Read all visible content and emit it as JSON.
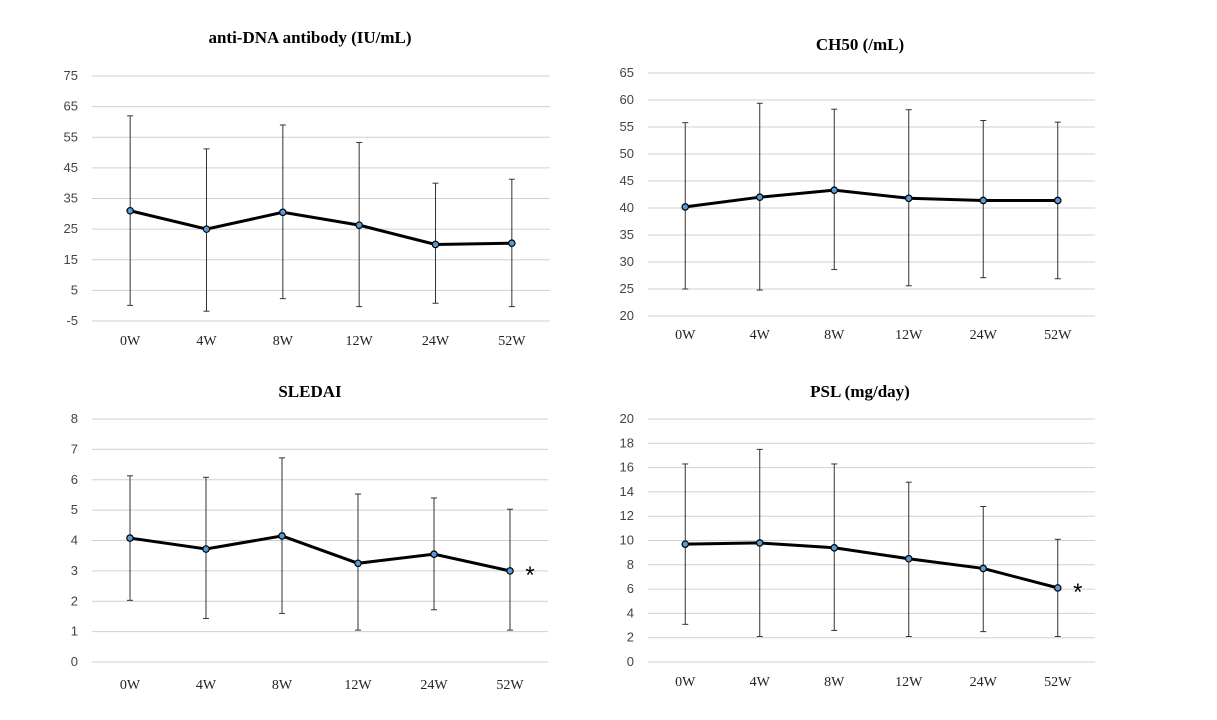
{
  "chart_data": [
    {
      "type": "line",
      "title": "anti-DNA antibody (IU/mL)",
      "categories": [
        "0W",
        "4W",
        "8W",
        "12W",
        "24W",
        "52W"
      ],
      "yticks": [
        -5,
        5,
        15,
        25,
        35,
        45,
        55,
        65,
        75
      ],
      "ylim": [
        -5,
        75
      ],
      "grid": true,
      "series": [
        {
          "values": [
            31,
            25,
            30.5,
            26.3,
            20,
            20.4
          ],
          "err_low": [
            0.1,
            -1.8,
            2.3,
            -0.3,
            0.8,
            -0.3
          ],
          "err_high": [
            62,
            51.2,
            59,
            53.3,
            40,
            41.3
          ]
        }
      ],
      "annotation": ""
    },
    {
      "type": "line",
      "title": "CH50 (/mL)",
      "categories": [
        "0W",
        "4W",
        "8W",
        "12W",
        "24W",
        "52W"
      ],
      "yticks": [
        20,
        25,
        30,
        35,
        40,
        45,
        50,
        55,
        60,
        65
      ],
      "ylim": [
        20,
        65
      ],
      "grid": true,
      "series": [
        {
          "values": [
            40.2,
            42,
            43.3,
            41.8,
            41.4,
            41.4
          ],
          "err_low": [
            25,
            24.8,
            28.6,
            25.6,
            27.1,
            26.9
          ],
          "err_high": [
            55.8,
            59.4,
            58.3,
            58.2,
            56.2,
            55.9
          ]
        }
      ],
      "annotation": ""
    },
    {
      "type": "line",
      "title": "SLEDAI",
      "categories": [
        "0W",
        "4W",
        "8W",
        "12W",
        "24W",
        "52W"
      ],
      "yticks": [
        0,
        1,
        2,
        3,
        4,
        5,
        6,
        7,
        8
      ],
      "ylim": [
        0,
        8
      ],
      "grid": true,
      "series": [
        {
          "values": [
            4.08,
            3.72,
            4.15,
            3.25,
            3.55,
            3.0
          ],
          "err_low": [
            2.03,
            1.43,
            1.6,
            1.05,
            1.72,
            1.05
          ],
          "err_high": [
            6.13,
            6.08,
            6.72,
            5.53,
            5.4,
            5.03
          ]
        }
      ],
      "annotation": "*"
    },
    {
      "type": "line",
      "title": "PSL (mg/day)",
      "categories": [
        "0W",
        "4W",
        "8W",
        "12W",
        "24W",
        "52W"
      ],
      "yticks": [
        0,
        2,
        4,
        6,
        8,
        10,
        12,
        14,
        16,
        18,
        20
      ],
      "ylim": [
        0,
        20
      ],
      "grid": true,
      "series": [
        {
          "values": [
            9.7,
            9.8,
            9.4,
            8.5,
            7.7,
            6.1
          ],
          "err_low": [
            3.1,
            2.1,
            2.6,
            2.1,
            2.5,
            2.1
          ],
          "err_high": [
            16.3,
            17.5,
            16.3,
            14.8,
            12.8,
            10.1
          ]
        }
      ],
      "annotation": "*"
    }
  ]
}
